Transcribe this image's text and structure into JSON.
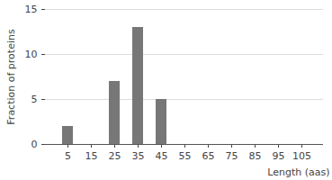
{
  "chart_data": {
    "type": "bar",
    "categories": [
      "5",
      "15",
      "25",
      "35",
      "45",
      "55",
      "65",
      "75",
      "85",
      "95",
      "105"
    ],
    "values": [
      2,
      0,
      7,
      13,
      5,
      0,
      0,
      0,
      0,
      0,
      0
    ],
    "color": "#777777",
    "x_label": "Length (aas)",
    "y_label": "Fraction of proteins",
    "ylim": [
      0,
      15
    ],
    "yticks": [
      0,
      5,
      10,
      15
    ],
    "grid": true
  }
}
